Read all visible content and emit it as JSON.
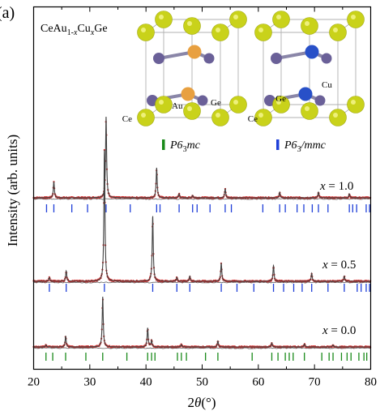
{
  "panel_label": "(a)",
  "compound_parts": [
    "CeAu",
    "1-",
    "x",
    "Cu",
    "x",
    "Ge"
  ],
  "structures": {
    "left": {
      "labels": {
        "ce": "Ce",
        "au": "Au",
        "ge": "Ge"
      },
      "legend_prefix": "P6",
      "legend_sub": "3",
      "legend_suffix": "mc",
      "legend_color": "#1a8a1a"
    },
    "right": {
      "labels": {
        "ce": "Ce",
        "cu": "Cu",
        "ge": "Ge"
      },
      "legend_prefix": "P6",
      "legend_sub": "3",
      "legend_suffix": "/mmc",
      "legend_color": "#1f3fd8"
    }
  },
  "colors": {
    "ce_atom": "#c9d21a",
    "au_atom": "#e8a040",
    "cu_atom": "#2850c8",
    "ge_atom": "#6a6098",
    "observed": "#d43030",
    "calculated": "#404040",
    "tick_p63mmc": "#1f3fd8",
    "tick_p63mc": "#1a8a1a"
  },
  "chart_data": {
    "type": "line",
    "title": "",
    "xlabel_symbol": "2",
    "xlabel_theta": "θ",
    "xlabel_unit": "(°)",
    "ylabel": "Intensity (arb. units)",
    "xlim": [
      20,
      80
    ],
    "xticks": [
      "20",
      "30",
      "40",
      "50",
      "60",
      "70",
      "80"
    ],
    "yticks": [],
    "series": [
      {
        "name": "x = 1.0",
        "label_var": "x",
        "label_value": "= 1.0",
        "peaks": [
          [
            23.6,
            0.2
          ],
          [
            32.9,
            1.0
          ],
          [
            41.9,
            0.37
          ],
          [
            45.9,
            0.05
          ],
          [
            48.3,
            0.03
          ],
          [
            54.1,
            0.11
          ],
          [
            63.8,
            0.07
          ],
          [
            70.7,
            0.07
          ],
          [
            76.2,
            0.05
          ]
        ],
        "ticks": [
          22.3,
          23.6,
          26.8,
          29.6,
          32.9,
          37.2,
          41.9,
          42.5,
          45.9,
          48.3,
          49.1,
          51.4,
          54.1,
          55.2,
          60.8,
          63.8,
          64.8,
          66.9,
          68.1,
          69.6,
          70.7,
          72.4,
          76.2,
          76.8,
          77.5,
          79.2,
          79.8
        ]
      },
      {
        "name": "x = 0.5",
        "label_var": "x",
        "label_value": "= 0.5",
        "peaks": [
          [
            22.8,
            0.03
          ],
          [
            25.8,
            0.08
          ],
          [
            32.6,
            1.0
          ],
          [
            41.2,
            0.5
          ],
          [
            45.5,
            0.03
          ],
          [
            47.8,
            0.04
          ],
          [
            53.4,
            0.14
          ],
          [
            62.7,
            0.12
          ],
          [
            69.5,
            0.06
          ],
          [
            75.3,
            0.04
          ]
        ],
        "ticks": [
          22.8,
          25.8,
          32.6,
          41.2,
          45.5,
          47.8,
          53.4,
          56.2,
          59.2,
          62.7,
          64.5,
          66.3,
          67.8,
          69.5,
          72.4,
          75.3,
          77.6,
          78.3,
          79.2,
          79.8
        ]
      },
      {
        "name": "x = 0.0",
        "label_var": "x",
        "label_value": "= 0.0",
        "peaks": [
          [
            22.2,
            0.04
          ],
          [
            25.7,
            0.22
          ],
          [
            32.3,
            1.0
          ],
          [
            40.3,
            0.38
          ],
          [
            41.0,
            0.13
          ],
          [
            46.3,
            0.05
          ],
          [
            52.8,
            0.12
          ],
          [
            62.4,
            0.08
          ],
          [
            68.2,
            0.06
          ],
          [
            73.3,
            0.04
          ]
        ],
        "ticks": [
          22.2,
          23.4,
          25.7,
          29.3,
          32.3,
          36.6,
          40.3,
          41.0,
          41.6,
          45.6,
          46.3,
          47.2,
          50.6,
          52.8,
          58.9,
          62.4,
          63.5,
          64.8,
          65.5,
          66.2,
          68.2,
          71.3,
          72.6,
          73.3,
          74.8,
          75.8,
          76.5,
          77.9,
          78.8,
          79.3
        ]
      }
    ],
    "grid": false,
    "legend": "none"
  }
}
